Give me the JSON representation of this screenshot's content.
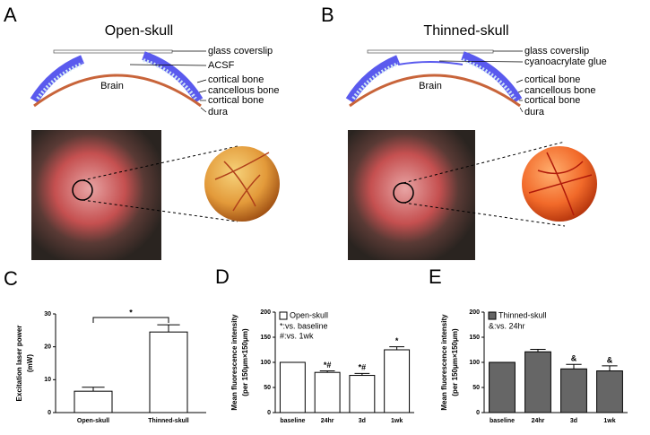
{
  "panels": {
    "A": {
      "label": "A",
      "title": "Open-skull",
      "brain": "Brain",
      "labels": [
        "glass coverslip",
        "ACSF",
        "cortical bone",
        "cancellous bone",
        "cortical bone",
        "dura"
      ]
    },
    "B": {
      "label": "B",
      "title": "Thinned-skull",
      "brain": "Brain",
      "labels": [
        "glass coverslip",
        "cyanoacrylate glue",
        "cortical bone",
        "cancellous bone",
        "cortical bone",
        "dura"
      ]
    }
  },
  "chart_data": [
    {
      "type": "bar",
      "panel": "C",
      "y_label": [
        "Excitation laser power",
        "(mW)"
      ],
      "categories": [
        "Open-skull",
        "Thinned-skull"
      ],
      "values": [
        6.5,
        24.5
      ],
      "errors": [
        1.2,
        2.2
      ],
      "color": "#ffffff",
      "bracket_label": "*",
      "ylim": [
        0,
        30
      ],
      "yticks": [
        0,
        10,
        20,
        30
      ]
    },
    {
      "type": "bar",
      "panel": "D",
      "y_label": [
        "Mean fluorescence intensity",
        "(per 150μm×150μm)"
      ],
      "categories": [
        "baseline",
        "24hr",
        "3d",
        "1wk"
      ],
      "series": [
        {
          "name": "Open-skull",
          "color": "#ffffff",
          "values": [
            100,
            80,
            74,
            125
          ],
          "errors": [
            null,
            3,
            4,
            6
          ],
          "annotations": [
            null,
            "*#",
            "*#",
            "*"
          ]
        }
      ],
      "notes": [
        "*:vs. baseline",
        "#:vs. 1wk"
      ],
      "ylim": [
        0,
        200
      ],
      "yticks": [
        0,
        50,
        100,
        150,
        200
      ]
    },
    {
      "type": "bar",
      "panel": "E",
      "y_label": [
        "Mean fluorescence intensity",
        "(per 150μm×150μm)"
      ],
      "categories": [
        "baseline",
        "24hr",
        "3d",
        "1wk"
      ],
      "series": [
        {
          "name": "Thinned-skull",
          "color": "#666666",
          "values": [
            100,
            121,
            87,
            83
          ],
          "errors": [
            null,
            5,
            9,
            10
          ],
          "annotations": [
            null,
            null,
            "&",
            "&"
          ]
        }
      ],
      "notes": [
        "&:vs. 24hr"
      ],
      "ylim": [
        0,
        200
      ],
      "yticks": [
        0,
        50,
        100,
        150,
        200
      ]
    }
  ]
}
